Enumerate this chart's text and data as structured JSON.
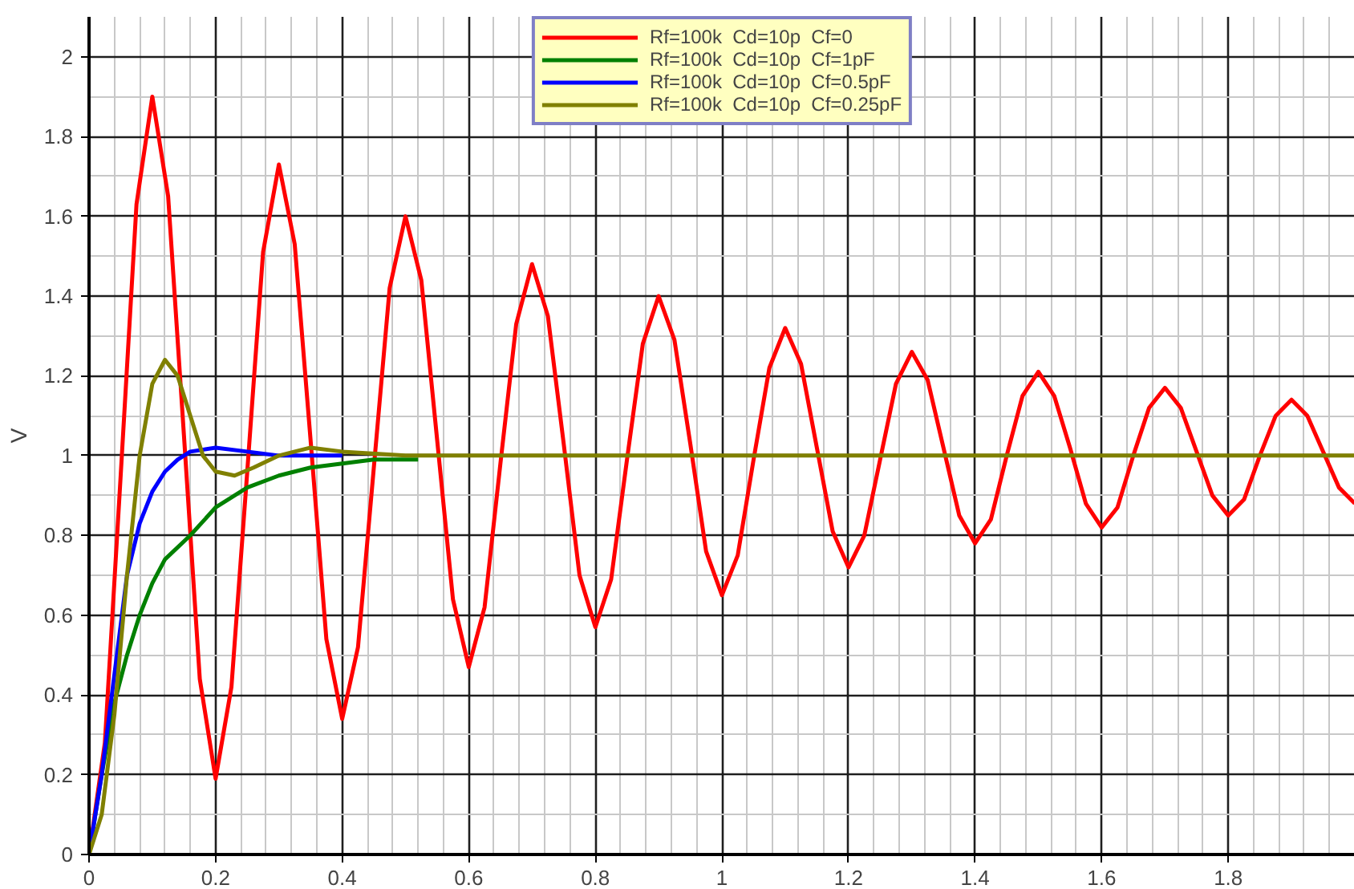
{
  "chart_data": {
    "type": "line",
    "ylabel": "V",
    "xlim": [
      0,
      2.0
    ],
    "ylim": [
      0,
      2.1
    ],
    "xticks": [
      0,
      0.2,
      0.4,
      0.6,
      0.8,
      1,
      1.2,
      1.4,
      1.6,
      1.8
    ],
    "yticks": [
      0,
      0.2,
      0.4,
      0.6,
      0.8,
      1,
      1.2,
      1.4,
      1.6,
      1.8,
      2
    ],
    "grid": true,
    "legend": "top",
    "marker": "none",
    "line_style": "solid",
    "series": [
      {
        "name": "Rf=100k  Cd=10p  Cf=0",
        "color": "#ff0000",
        "x": [
          0,
          0.025,
          0.05,
          0.075,
          0.1,
          0.125,
          0.15,
          0.175,
          0.2,
          0.225,
          0.25,
          0.275,
          0.3,
          0.325,
          0.35,
          0.375,
          0.4,
          0.425,
          0.45,
          0.475,
          0.5,
          0.525,
          0.55,
          0.575,
          0.6,
          0.625,
          0.65,
          0.675,
          0.7,
          0.725,
          0.75,
          0.775,
          0.8,
          0.825,
          0.85,
          0.875,
          0.9,
          0.925,
          0.95,
          0.975,
          1.0,
          1.025,
          1.05,
          1.075,
          1.1,
          1.125,
          1.15,
          1.175,
          1.2,
          1.225,
          1.25,
          1.275,
          1.3,
          1.325,
          1.35,
          1.375,
          1.4,
          1.425,
          1.45,
          1.475,
          1.5,
          1.525,
          1.55,
          1.575,
          1.6,
          1.625,
          1.65,
          1.675,
          1.7,
          1.725,
          1.75,
          1.775,
          1.8,
          1.825,
          1.85,
          1.875,
          1.9,
          1.925,
          1.95,
          1.975,
          2.0
        ],
        "values": [
          0,
          0.28,
          0.95,
          1.63,
          1.9,
          1.65,
          1.05,
          0.44,
          0.19,
          0.42,
          0.96,
          1.51,
          1.73,
          1.53,
          1.04,
          0.54,
          0.34,
          0.52,
          0.97,
          1.42,
          1.6,
          1.44,
          1.04,
          0.64,
          0.47,
          0.62,
          0.98,
          1.33,
          1.48,
          1.35,
          1.03,
          0.7,
          0.57,
          0.69,
          0.99,
          1.28,
          1.4,
          1.29,
          1.03,
          0.76,
          0.65,
          0.75,
          0.99,
          1.22,
          1.32,
          1.23,
          1.02,
          0.81,
          0.72,
          0.8,
          0.99,
          1.18,
          1.26,
          1.19,
          1.02,
          0.85,
          0.78,
          0.84,
          1.0,
          1.15,
          1.21,
          1.15,
          1.02,
          0.88,
          0.82,
          0.87,
          1.0,
          1.12,
          1.17,
          1.12,
          1.01,
          0.9,
          0.85,
          0.89,
          1.0,
          1.1,
          1.14,
          1.1,
          1.01,
          0.92,
          0.88
        ]
      },
      {
        "name": "Rf=100k  Cd=10p  Cf=1pF",
        "color": "#008000",
        "x": [
          0,
          0.02,
          0.04,
          0.06,
          0.08,
          0.1,
          0.12,
          0.16,
          0.2,
          0.25,
          0.3,
          0.35,
          0.4,
          0.45,
          0.52
        ],
        "values": [
          0,
          0.2,
          0.38,
          0.5,
          0.6,
          0.68,
          0.74,
          0.8,
          0.87,
          0.92,
          0.95,
          0.97,
          0.98,
          0.99,
          0.99
        ]
      },
      {
        "name": "Rf=100k  Cd=10p  Cf=0.5pF",
        "color": "#0000ff",
        "x": [
          0,
          0.02,
          0.04,
          0.06,
          0.08,
          0.1,
          0.12,
          0.14,
          0.16,
          0.2,
          0.25,
          0.3,
          0.35,
          0.4
        ],
        "values": [
          0,
          0.2,
          0.45,
          0.7,
          0.83,
          0.91,
          0.96,
          0.99,
          1.01,
          1.02,
          1.01,
          1.0,
          1.0,
          1.0
        ]
      },
      {
        "name": "Rf=100k  Cd=10p  Cf=0.25pF",
        "color": "#808000",
        "x": [
          0,
          0.02,
          0.04,
          0.06,
          0.08,
          0.1,
          0.12,
          0.14,
          0.16,
          0.18,
          0.2,
          0.23,
          0.26,
          0.3,
          0.35,
          0.4,
          0.5,
          2.0
        ],
        "values": [
          0,
          0.1,
          0.35,
          0.7,
          1.0,
          1.18,
          1.24,
          1.2,
          1.1,
          1.0,
          0.96,
          0.95,
          0.97,
          1.0,
          1.02,
          1.01,
          1.0,
          1.0
        ]
      }
    ]
  }
}
